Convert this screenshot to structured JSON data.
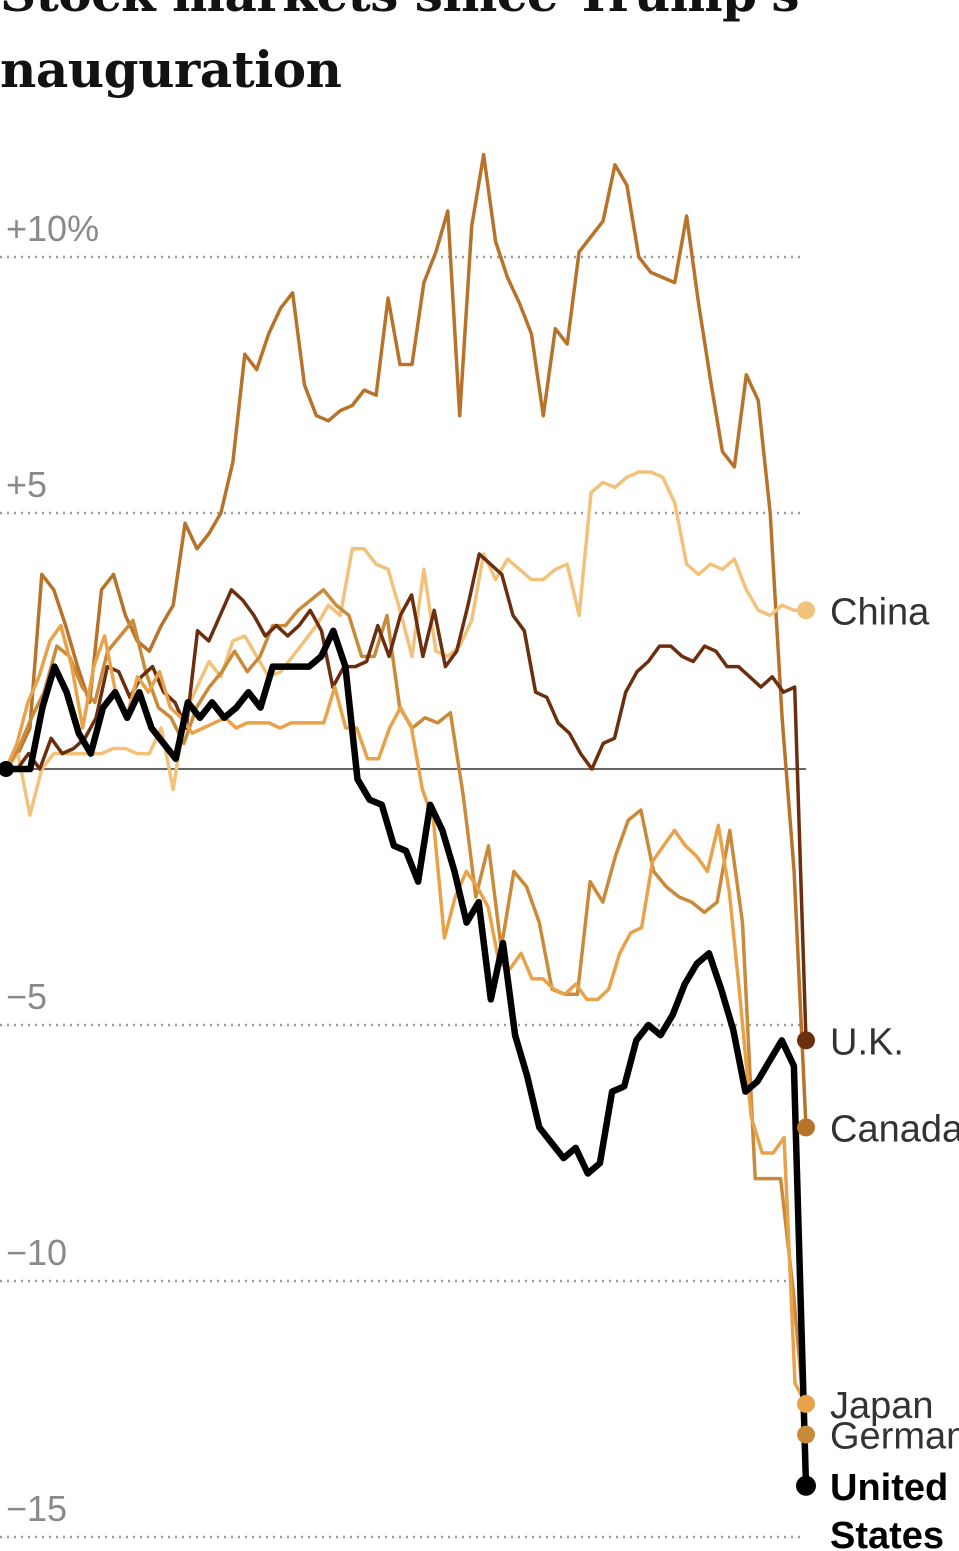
{
  "title": {
    "line1": "Stock markets since Trump's",
    "line2": "nauguration"
  },
  "chart_data": {
    "type": "line",
    "title": "Stock markets since Trump's inauguration",
    "ylim": [
      -15,
      12
    ],
    "y_ticks": [
      {
        "value": 10,
        "label": "+10%"
      },
      {
        "value": 5,
        "label": "+5"
      },
      {
        "value": -5,
        "label": "−5"
      },
      {
        "value": -10,
        "label": "−10"
      },
      {
        "value": -15,
        "label": "−15"
      }
    ],
    "zero_line": true,
    "grid": "dotted horizontal",
    "labels_on_right": true,
    "series": [
      {
        "name": "Canada",
        "color": "#b8732a",
        "values": [
          0,
          0.3,
          0.8,
          3.8,
          3.5,
          2.8,
          2.0,
          1.3,
          3.5,
          3.8,
          3.0,
          2.5,
          2.3,
          2.8,
          3.2,
          4.8,
          4.3,
          4.6,
          5.0,
          6.0,
          8.1,
          7.8,
          8.5,
          9.0,
          9.3,
          7.5,
          6.9,
          6.8,
          7.0,
          7.1,
          7.4,
          7.3,
          9.2,
          7.9,
          7.9,
          9.5,
          10.1,
          10.9,
          6.9,
          10.6,
          12.0,
          10.3,
          9.6,
          9.1,
          8.5,
          6.9,
          8.6,
          8.3,
          10.1,
          10.4,
          10.7,
          11.8,
          11.4,
          10.0,
          9.7,
          9.6,
          9.5,
          10.8,
          9.1,
          7.6,
          6.2,
          5.9,
          7.7,
          7.2,
          5.0,
          1.0,
          -2.0,
          -7.0
        ]
      },
      {
        "name": "China",
        "color": "#f2c27a",
        "values": [
          0,
          0.3,
          -0.9,
          0,
          0.3,
          0.3,
          0.3,
          0.3,
          0.3,
          0.4,
          0.4,
          0.3,
          0.3,
          0.8,
          -0.4,
          1.1,
          1.6,
          2.1,
          1.8,
          2.5,
          2.6,
          2.2,
          1.8,
          1.9,
          2.2,
          2.5,
          2.8,
          3.2,
          3.0,
          4.3,
          4.3,
          4.0,
          3.9,
          3.1,
          2.2,
          3.9,
          2.3,
          2.2,
          2.4,
          2.9,
          4.2,
          3.7,
          4.1,
          3.9,
          3.7,
          3.7,
          3.9,
          4.0,
          3.0,
          5.4,
          5.6,
          5.5,
          5.7,
          5.8,
          5.8,
          5.7,
          5.2,
          4.0,
          3.8,
          4.0,
          3.9,
          4.1,
          3.5,
          3.1,
          3.0,
          3.2,
          3.1,
          3.1
        ]
      },
      {
        "name": "Germany",
        "color": "#c98a3a",
        "values": [
          0,
          0.4,
          1.0,
          1.5,
          2.4,
          2.2,
          1.6,
          1.3,
          2.3,
          2.6,
          2.9,
          1.9,
          1.2,
          1.0,
          0.5,
          1.2,
          1.6,
          1.9,
          2.3,
          1.9,
          2.2,
          2.8,
          2.8,
          3.1,
          3.3,
          3.5,
          3.2,
          3.0,
          2.2,
          2.2,
          3.0,
          1.2,
          0.8,
          1.0,
          0.9,
          1.1,
          -0.5,
          -2.5,
          -1.5,
          -3.5,
          -2.0,
          -2.3,
          -3.0,
          -4.3,
          -4.4,
          -4.4,
          -2.2,
          -2.6,
          -1.7,
          -1.0,
          -0.8,
          -2.0,
          -2.3,
          -2.5,
          -2.6,
          -2.8,
          -2.6,
          -1.2,
          -3.0,
          -8.0,
          -8.0,
          -8.0,
          -10.2,
          -13.0
        ]
      },
      {
        "name": "U.K.",
        "color": "#6b2e0f",
        "values": [
          0,
          0,
          0.3,
          0,
          0.6,
          0.3,
          0.4,
          0.6,
          1.0,
          2.0,
          1.9,
          1.4,
          1.8,
          2.0,
          1.5,
          1.3,
          0.8,
          2.7,
          2.5,
          3.0,
          3.5,
          3.3,
          3.0,
          2.6,
          2.8,
          2.6,
          2.8,
          3.1,
          2.7,
          1.6,
          2.0,
          2.0,
          2.1,
          2.8,
          2.2,
          3.0,
          3.4,
          2.2,
          3.1,
          2.0,
          2.3,
          3.2,
          4.2,
          4.0,
          3.8,
          3.0,
          2.7,
          1.5,
          1.4,
          0.9,
          0.7,
          0.3,
          0,
          0.5,
          0.6,
          1.5,
          1.9,
          2.1,
          2.4,
          2.4,
          2.2,
          2.1,
          2.4,
          2.3,
          2.0,
          2.0,
          1.8,
          1.6,
          1.8,
          1.5,
          1.6,
          -5.3
        ]
      },
      {
        "name": "Japan",
        "color": "#e8a24a",
        "values": [
          0,
          0.5,
          1.3,
          1.8,
          2.5,
          2.8,
          2.0,
          0.8,
          2.0,
          2.6,
          1.5,
          1.0,
          1.8,
          1.5,
          1.9,
          1.2,
          1.0,
          0.7,
          0.8,
          0.9,
          1.0,
          0.8,
          0.9,
          0.9,
          0.9,
          0.8,
          0.9,
          0.9,
          0.9,
          0.9,
          1.6,
          0.8,
          0.8,
          0.2,
          0.2,
          0.8,
          1.2,
          0.8,
          -0.4,
          -1.0,
          -3.3,
          -2.5,
          -2.0,
          -2.3,
          -2.7,
          -3.8,
          -3.9,
          -3.6,
          -4.1,
          -4.1,
          -4.3,
          -4.4,
          -4.2,
          -4.5,
          -4.5,
          -4.3,
          -3.6,
          -3.2,
          -3.1,
          -1.8,
          -1.5,
          -1.2,
          -1.5,
          -1.7,
          -2.0,
          -1.1,
          -2.4,
          -4.5,
          -6.8,
          -7.5,
          -7.5,
          -7.2,
          -12.0,
          -12.4
        ]
      },
      {
        "name": "United States",
        "color": "#000000",
        "emphasis": true,
        "values": [
          0,
          0,
          0,
          1.2,
          2.0,
          1.5,
          0.7,
          0.3,
          1.2,
          1.5,
          1.0,
          1.5,
          0.8,
          0.5,
          0.2,
          1.3,
          1.0,
          1.3,
          1.0,
          1.2,
          1.5,
          1.2,
          2.0,
          2.0,
          2.0,
          2.0,
          2.2,
          2.7,
          2.0,
          -0.2,
          -0.6,
          -0.7,
          -1.5,
          -1.6,
          -2.2,
          -0.7,
          -1.2,
          -2.0,
          -3.0,
          -2.6,
          -4.5,
          -3.4,
          -5.2,
          -6.0,
          -7.0,
          -7.3,
          -7.6,
          -7.4,
          -7.9,
          -7.7,
          -6.3,
          -6.2,
          -5.3,
          -5.0,
          -5.2,
          -4.8,
          -4.2,
          -3.8,
          -3.6,
          -4.3,
          -5.1,
          -6.3,
          -6.1,
          -5.7,
          -5.3,
          -5.8,
          -14.0
        ]
      }
    ]
  }
}
